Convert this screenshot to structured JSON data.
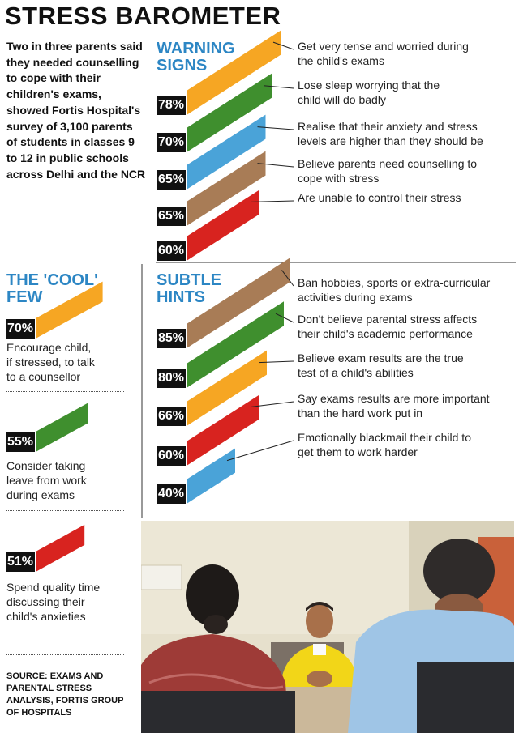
{
  "title": "STRESS BAROMETER",
  "intro": "Two in three parents said they needed counselling to cope with their children's exams, showed Fortis Hospital's survey of 3,100 parents of students in classes 9 to 12 in public schools across Delhi and the NCR",
  "source": "SOURCE: EXAMS AND PARENTAL STRESS ANALYSIS, FORTIS GROUP OF HOSPITALS",
  "colors": {
    "orange": "#f6a623",
    "green": "#3f8f2e",
    "blue": "#4aa3d8",
    "brown": "#a87c56",
    "red": "#d8231f",
    "heading": "#2c86c4"
  },
  "chart_data": [
    {
      "type": "bar",
      "title": "WARNING SIGNS",
      "title_lines": [
        "WARNING",
        "SIGNS"
      ],
      "categories": [
        "Get very tense and worried during the child's exams",
        "Lose sleep worrying that the child will do badly",
        "Realise that their anxiety and stress levels are higher than they should be",
        "Believe parents need counselling to cope with stress",
        "Are unable to control their stress"
      ],
      "category_lines": [
        [
          "Get very tense and worried during",
          "the child's exams"
        ],
        [
          "Lose sleep worrying that the",
          "child will do badly"
        ],
        [
          "Realise that their anxiety and stress",
          "levels are higher than they should be"
        ],
        [
          "Believe parents need counselling to",
          "cope with stress"
        ],
        [
          "Are unable to control their stress"
        ]
      ],
      "values": [
        78,
        70,
        65,
        65,
        60
      ],
      "labels": [
        "78%",
        "70%",
        "65%",
        "65%",
        "60%"
      ],
      "colors": [
        "#f6a623",
        "#3f8f2e",
        "#4aa3d8",
        "#a87c56",
        "#d8231f"
      ]
    },
    {
      "type": "bar",
      "title": "SUBTLE HINTS",
      "title_lines": [
        "SUBTLE",
        "HINTS"
      ],
      "categories": [
        "Ban hobbies, sports or extra-curricular activities during exams",
        "Don't believe parental stress affects their child's academic performance",
        "Believe exam results are the true test of a child's abilities",
        "Say exams results are more important than the hard work put in",
        "Emotionally blackmail their child to get them to work harder"
      ],
      "category_lines": [
        [
          "Ban hobbies, sports or extra-curricular",
          "activities during exams"
        ],
        [
          "Don't believe parental stress affects",
          "their child's academic performance"
        ],
        [
          "Believe exam results are the true",
          "test of a child's abilities"
        ],
        [
          "Say exams results are more important",
          "than the hard work put in"
        ],
        [
          "Emotionally blackmail their child to",
          "get them to work harder"
        ]
      ],
      "values": [
        85,
        80,
        66,
        60,
        40
      ],
      "labels": [
        "85%",
        "80%",
        "66%",
        "60%",
        "40%"
      ],
      "colors": [
        "#a87c56",
        "#3f8f2e",
        "#f6a623",
        "#d8231f",
        "#4aa3d8"
      ]
    },
    {
      "type": "bar",
      "title": "THE 'COOL' FEW",
      "title_lines": [
        "THE 'COOL'",
        "FEW"
      ],
      "categories": [
        "Encourage child, if stressed, to talk to a counsellor",
        "Consider taking leave from work during exams",
        "Spend quality time discussing their child's anxieties"
      ],
      "category_lines": [
        [
          "Encourage child,",
          "if stressed, to talk",
          "to a counsellor"
        ],
        [
          "Consider taking",
          "leave from work",
          "during exams"
        ],
        [
          "Spend quality time",
          "discussing their",
          "child's anxieties"
        ]
      ],
      "values": [
        70,
        55,
        51
      ],
      "labels": [
        "70%",
        "55%",
        "51%"
      ],
      "colors": [
        "#f6a623",
        "#3f8f2e",
        "#d8231f"
      ]
    }
  ]
}
